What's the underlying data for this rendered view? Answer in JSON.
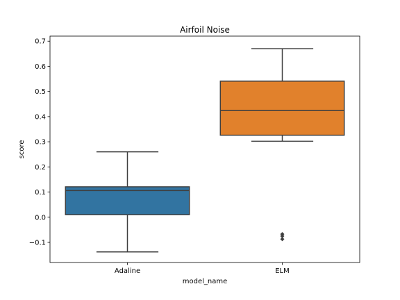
{
  "chart_data": {
    "type": "box",
    "title": "Airfoil Noise",
    "xlabel": "model_name",
    "ylabel": "score",
    "ylim": [
      -0.18,
      0.72
    ],
    "yticks": [
      -0.1,
      0.0,
      0.1,
      0.2,
      0.3,
      0.4,
      0.5,
      0.6,
      0.7
    ],
    "ytick_labels": [
      "−0.1",
      "0.0",
      "0.1",
      "0.2",
      "0.3",
      "0.4",
      "0.5",
      "0.6",
      "0.7"
    ],
    "grid": false,
    "categories": [
      "Adaline",
      "ELM"
    ],
    "boxes": [
      {
        "category": "Adaline",
        "color": "#3274a1",
        "whisker_low": -0.138,
        "q1": 0.01,
        "median": 0.106,
        "q3": 0.121,
        "whisker_high": 0.26,
        "outliers": []
      },
      {
        "category": "ELM",
        "color": "#e1812c",
        "whisker_low": 0.302,
        "q1": 0.326,
        "median": 0.424,
        "q3": 0.541,
        "whisker_high": 0.67,
        "outliers": [
          -0.067,
          -0.075,
          -0.087
        ]
      }
    ]
  }
}
